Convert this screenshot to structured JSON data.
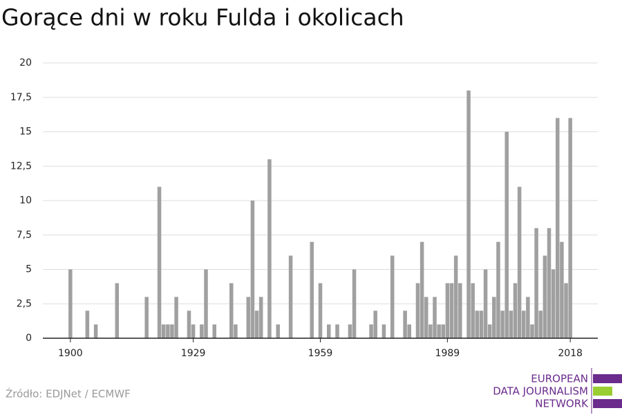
{
  "chart_data": {
    "type": "bar",
    "title": "Gorące dni w roku Fulda i okolicach",
    "x": [
      1900,
      1904,
      1906,
      1911,
      1918,
      1921,
      1922,
      1923,
      1924,
      1925,
      1928,
      1929,
      1931,
      1932,
      1934,
      1938,
      1939,
      1942,
      1943,
      1944,
      1945,
      1947,
      1949,
      1952,
      1957,
      1959,
      1961,
      1963,
      1966,
      1967,
      1971,
      1972,
      1974,
      1976,
      1979,
      1980,
      1982,
      1983,
      1984,
      1985,
      1986,
      1987,
      1988,
      1989,
      1990,
      1991,
      1992,
      1994,
      1995,
      1996,
      1997,
      1998,
      1999,
      2000,
      2001,
      2002,
      2003,
      2004,
      2005,
      2006,
      2007,
      2008,
      2009,
      2010,
      2011,
      2012,
      2013,
      2014,
      2015,
      2016,
      2017,
      2018
    ],
    "values": [
      5,
      2,
      1,
      4,
      3,
      11,
      1,
      1,
      1,
      3,
      2,
      1,
      1,
      5,
      1,
      4,
      1,
      3,
      10,
      2,
      3,
      13,
      1,
      6,
      7,
      4,
      1,
      1,
      1,
      5,
      1,
      2,
      1,
      6,
      2,
      1,
      4,
      7,
      3,
      1,
      3,
      1,
      1,
      4,
      4,
      6,
      4,
      18,
      4,
      2,
      2,
      5,
      1,
      3,
      7,
      2,
      15,
      2,
      4,
      11,
      2,
      3,
      1,
      8,
      2,
      6,
      8,
      5,
      16,
      7,
      4,
      16
    ],
    "color": "#a0a0a0",
    "xlim": [
      1893.5,
      2024.5
    ],
    "xticks": [
      1900,
      1929,
      1959,
      1989,
      2018
    ],
    "ylim": [
      0,
      20
    ],
    "yticks": [
      0,
      {
        "value": 2.5,
        "label": "2,5"
      },
      5,
      {
        "value": 7.5,
        "label": "7,5"
      },
      10,
      {
        "value": 12.5,
        "label": "12,5"
      },
      15,
      {
        "value": 17.5,
        "label": "17,5"
      },
      20
    ],
    "grid": true,
    "source": "Źródło: EDJNet / ECMWF"
  },
  "logo": [
    "EUROPEAN",
    "DATA JOURNALISM",
    "NETWORK"
  ]
}
